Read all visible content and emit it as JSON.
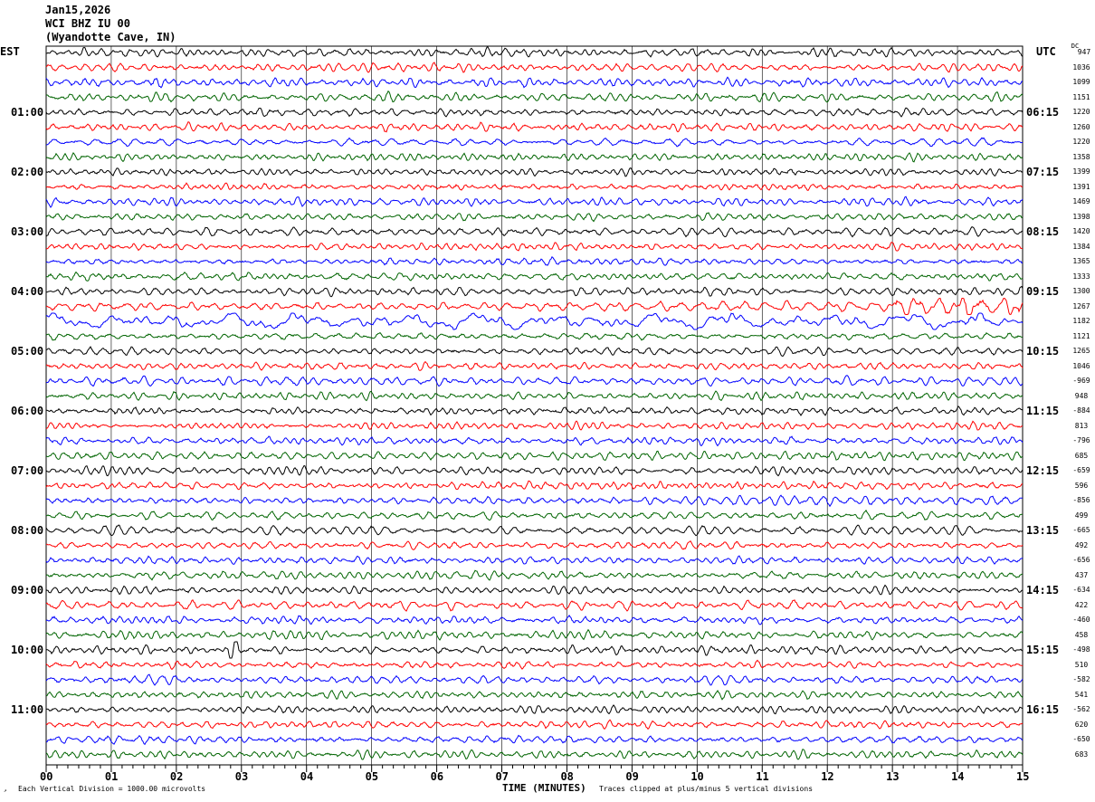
{
  "header": {
    "date": "Jan15,2026",
    "station": "WCI BHZ IU 00",
    "location": "(Wyandotte Cave, IN)"
  },
  "left_axis_title": "EST",
  "right_axis_title": "UTC",
  "dc_title": "DC",
  "footer": {
    "scale": "Each Vertical Division = 1000.00 microvolts",
    "xlabel": "TIME (MINUTES)",
    "clip_note": "Traces clipped at plus/minus 5 vertical divisions"
  },
  "chart_data": {
    "type": "line",
    "title": "Jan15,2026 WCI BHZ IU 00 (Wyandotte Cave, IN)",
    "xlabel": "TIME (MINUTES)",
    "xlim": [
      0,
      15
    ],
    "x_ticks": [
      "00",
      "01",
      "02",
      "03",
      "04",
      "05",
      "06",
      "07",
      "08",
      "09",
      "10",
      "11",
      "12",
      "13",
      "14",
      "15"
    ],
    "rows": 48,
    "minutes_per_row": 15,
    "trace_colors": [
      "#000000",
      "#ff0000",
      "#0000ff",
      "#006400"
    ],
    "left_labels": [
      {
        "row": 4,
        "text": "01:00"
      },
      {
        "row": 8,
        "text": "02:00"
      },
      {
        "row": 12,
        "text": "03:00"
      },
      {
        "row": 16,
        "text": "04:00"
      },
      {
        "row": 20,
        "text": "05:00"
      },
      {
        "row": 24,
        "text": "06:00"
      },
      {
        "row": 28,
        "text": "07:00"
      },
      {
        "row": 32,
        "text": "08:00"
      },
      {
        "row": 36,
        "text": "09:00"
      },
      {
        "row": 40,
        "text": "10:00"
      },
      {
        "row": 44,
        "text": "11:00"
      }
    ],
    "right_labels": [
      {
        "row": 4,
        "text": "06:15"
      },
      {
        "row": 8,
        "text": "07:15"
      },
      {
        "row": 12,
        "text": "08:15"
      },
      {
        "row": 16,
        "text": "09:15"
      },
      {
        "row": 20,
        "text": "10:15"
      },
      {
        "row": 24,
        "text": "11:15"
      },
      {
        "row": 28,
        "text": "12:15"
      },
      {
        "row": 32,
        "text": "13:15"
      },
      {
        "row": 36,
        "text": "14:15"
      },
      {
        "row": 40,
        "text": "15:15"
      },
      {
        "row": 44,
        "text": "16:15"
      }
    ],
    "dc_offsets": [
      "947",
      "1036",
      "1099",
      "1151",
      "1220",
      "1260",
      "1220",
      "1358",
      "1399",
      "1391",
      "1469",
      "1398",
      "1420",
      "1384",
      "1365",
      "1333",
      "1300",
      "1267",
      "1182",
      "1121",
      "1265",
      "1046",
      "-969",
      "948",
      "-884",
      "813",
      "-796",
      "685",
      "-659",
      "596",
      "-856",
      "499",
      "-665",
      "492",
      "-656",
      "437",
      "-634",
      "422",
      "-460",
      "458",
      "-498",
      "510",
      "-582",
      "541",
      "-562",
      "620",
      "-650",
      "683"
    ],
    "events": [
      {
        "row": 17,
        "minute_start": 13.0,
        "minute_end": 15,
        "amplitude": 2.0
      },
      {
        "row": 18,
        "minute_start": 0,
        "minute_end": 15,
        "amplitude": 2.5,
        "low_frequency": true
      },
      {
        "row": 40,
        "minute_start": 2.8,
        "minute_end": 2.95,
        "amplitude": 3.0
      }
    ]
  }
}
